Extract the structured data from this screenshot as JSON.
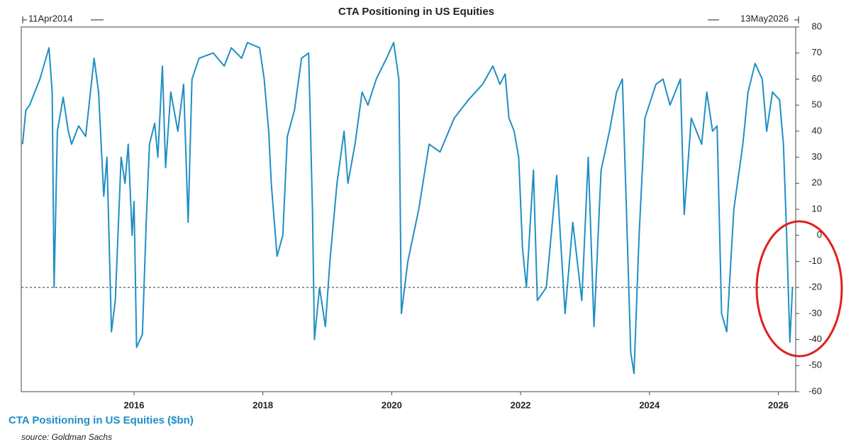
{
  "chart_data": {
    "type": "line",
    "title": "CTA Positioning in US Equities",
    "start_label": "11Apr2014",
    "end_label": "13May2026",
    "y_label": "CTA Positioning in US Equities ($bn)",
    "source": "source: Goldman Sachs",
    "xlim": [
      2014.25,
      2026.27
    ],
    "xticks": [
      2016,
      2018,
      2020,
      2022,
      2024,
      2026
    ],
    "ylim": [
      -60,
      80
    ],
    "yticks": [
      -60,
      -50,
      -40,
      -30,
      -20,
      -10,
      0,
      10,
      20,
      30,
      40,
      50,
      60,
      70,
      80
    ],
    "reference_line": -20,
    "series": [
      {
        "name": "CTA Positioning",
        "color": "#1f8fc4",
        "x": [
          2014.27,
          2014.32,
          2014.38,
          2014.54,
          2014.68,
          2014.73,
          2014.76,
          2014.81,
          2014.9,
          2014.98,
          2015.03,
          2015.14,
          2015.25,
          2015.38,
          2015.45,
          2015.53,
          2015.58,
          2015.65,
          2015.71,
          2015.8,
          2015.86,
          2015.91,
          2015.97,
          2016.0,
          2016.04,
          2016.13,
          2016.19,
          2016.24,
          2016.32,
          2016.37,
          2016.44,
          2016.49,
          2016.57,
          2016.68,
          2016.77,
          2016.84,
          2016.9,
          2017.01,
          2017.23,
          2017.4,
          2017.51,
          2017.67,
          2017.76,
          2017.95,
          2018.02,
          2018.09,
          2018.13,
          2018.22,
          2018.31,
          2018.38,
          2018.49,
          2018.6,
          2018.71,
          2018.77,
          2018.8,
          2018.88,
          2018.97,
          2019.04,
          2019.15,
          2019.26,
          2019.32,
          2019.43,
          2019.54,
          2019.63,
          2019.76,
          2019.92,
          2020.03,
          2020.11,
          2020.15,
          2020.25,
          2020.42,
          2020.58,
          2020.75,
          2020.97,
          2021.19,
          2021.41,
          2021.57,
          2021.68,
          2021.76,
          2021.82,
          2021.9,
          2021.97,
          2022.03,
          2022.09,
          2022.2,
          2022.26,
          2022.4,
          2022.56,
          2022.69,
          2022.81,
          2022.95,
          2023.05,
          2023.14,
          2023.25,
          2023.38,
          2023.49,
          2023.58,
          2023.63,
          2023.71,
          2023.76,
          2023.84,
          2023.93,
          2024.1,
          2024.21,
          2024.32,
          2024.48,
          2024.54,
          2024.65,
          2024.81,
          2024.89,
          2024.98,
          2025.05,
          2025.12,
          2025.2,
          2025.31,
          2025.45,
          2025.53,
          2025.64,
          2025.75,
          2025.82,
          2025.91,
          2026.02,
          2026.08,
          2026.13,
          2026.18,
          2026.22
        ],
        "values": [
          35,
          48,
          50,
          60,
          72,
          55,
          -20,
          40,
          53,
          40,
          35,
          42,
          38,
          68,
          55,
          15,
          30,
          -37,
          -25,
          30,
          20,
          35,
          0,
          13,
          -43,
          -38,
          5,
          35,
          43,
          30,
          65,
          26,
          55,
          40,
          58,
          5,
          60,
          68,
          70,
          65,
          72,
          68,
          74,
          72,
          60,
          40,
          20,
          -8,
          0,
          38,
          48,
          68,
          70,
          10,
          -40,
          -20,
          -35,
          -10,
          20,
          40,
          20,
          35,
          55,
          50,
          60,
          68,
          74,
          60,
          -30,
          -10,
          10,
          35,
          32,
          45,
          52,
          58,
          65,
          58,
          62,
          45,
          40,
          30,
          -5,
          -20,
          25,
          -25,
          -20,
          23,
          -30,
          5,
          -25,
          30,
          -35,
          25,
          40,
          55,
          60,
          20,
          -45,
          -53,
          0,
          45,
          58,
          60,
          50,
          60,
          8,
          45,
          35,
          55,
          40,
          42,
          -30,
          -37,
          10,
          35,
          55,
          66,
          60,
          40,
          55,
          52,
          35,
          0,
          -41,
          -20
        ]
      }
    ]
  }
}
